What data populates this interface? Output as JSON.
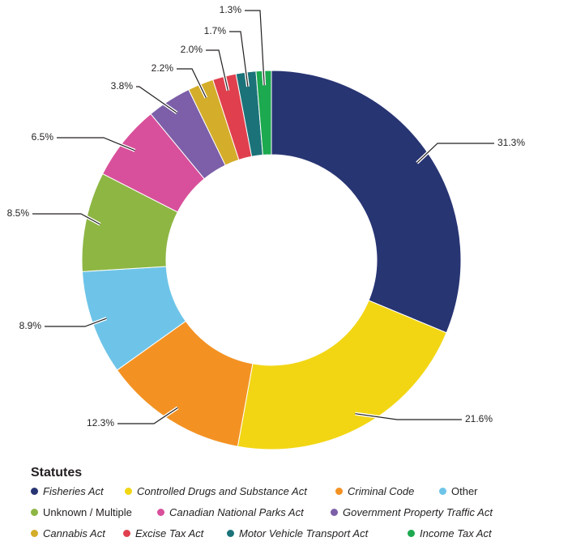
{
  "chart_data": {
    "type": "donut",
    "unit": "%",
    "slices": [
      {
        "label": "Fisheries Act",
        "value": 31.3,
        "display": "31.3%",
        "color": "#283573",
        "italic": true
      },
      {
        "label": "Controlled Drugs and Substance Act",
        "value": 21.6,
        "display": "21.6%",
        "color": "#f2d614",
        "italic": true
      },
      {
        "label": "Criminal Code",
        "value": 12.3,
        "display": "12.3%",
        "color": "#f39223",
        "italic": true
      },
      {
        "label": "Other",
        "value": 8.9,
        "display": "8.9%",
        "color": "#6ec4e8",
        "italic": false
      },
      {
        "label": "Unknown / Multiple",
        "value": 8.5,
        "display": "8.5%",
        "color": "#8db643",
        "italic": false
      },
      {
        "label": "Canadian National Parks Act",
        "value": 6.5,
        "display": "6.5%",
        "color": "#d8509b",
        "italic": true
      },
      {
        "label": "Government Property Traffic Act",
        "value": 3.8,
        "display": "3.8%",
        "color": "#7c5fa8",
        "italic": true
      },
      {
        "label": "Cannabis Act",
        "value": 2.2,
        "display": "2.2%",
        "color": "#d4ad2a",
        "italic": true
      },
      {
        "label": "Excise Tax Act",
        "value": 2.0,
        "display": "2.0%",
        "color": "#e0404e",
        "italic": true
      },
      {
        "label": "Motor Vehicle Transport Act",
        "value": 1.7,
        "display": "1.7%",
        "color": "#1b7379",
        "italic": true
      },
      {
        "label": "Income Tax Act",
        "value": 1.3,
        "display": "1.3%",
        "color": "#1ca94f",
        "italic": true
      }
    ],
    "legend_title": "Statutes",
    "legend_position": "bottom-left"
  }
}
